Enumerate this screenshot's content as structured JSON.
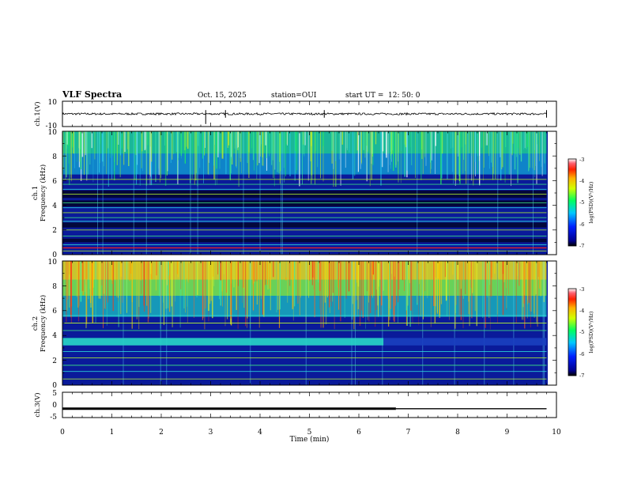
{
  "header": {
    "title": "VLF Spectra",
    "date": "Oct. 15, 2025",
    "station": "station=OUI",
    "start_label": "start  UT =",
    "start_time": "12: 50: 0"
  },
  "chart_data": [
    {
      "type": "line",
      "name": "ch1-waveform",
      "ylabel": "ch.1(V)",
      "ylim": [
        -10,
        10
      ],
      "yticks": [
        "10",
        "-10"
      ],
      "x_range_min": [
        0,
        10
      ],
      "baseline_value": 0,
      "spike_at_min": [
        2.9,
        3.3,
        5.3,
        9.8
      ]
    },
    {
      "type": "heatmap",
      "name": "ch1-spectrogram",
      "ylabel_line1": "ch.1",
      "ylabel_line2": "Frequency (kHz)",
      "ylim": [
        0,
        10
      ],
      "yticks": [
        "0",
        "2",
        "4",
        "6",
        "8",
        "10"
      ],
      "x_range_min": [
        0,
        10
      ],
      "colorbar_label": "log(PSD)(V²/Hz)",
      "colorbar_range": [
        -7,
        -3
      ],
      "colorbar_ticks": [
        "-3",
        "-4",
        "-5",
        "-6",
        "-7"
      ],
      "line_frequencies_khz": [
        0.3,
        0.8,
        1.5,
        2.0,
        2.7,
        3.0,
        3.4,
        3.8,
        4.2,
        4.9,
        5.3,
        5.7,
        6.1
      ],
      "bright_band_khz": [
        6.5,
        10
      ]
    },
    {
      "type": "heatmap",
      "name": "ch2-spectrogram",
      "ylabel_line1": "ch.2",
      "ylabel_line2": "Frequency (kHz)",
      "ylim": [
        0,
        10
      ],
      "yticks": [
        "0",
        "2",
        "4",
        "6",
        "8",
        "10"
      ],
      "x_range_min": [
        0,
        10
      ],
      "colorbar_label": "log(PSD)(V²/Hz)",
      "colorbar_range": [
        -7,
        -3
      ],
      "colorbar_ticks": [
        "-3",
        "-4",
        "-5",
        "-6",
        "-7"
      ],
      "band_khz": [
        3.2,
        3.8
      ],
      "band_end_min": 6.5,
      "line_frequencies_khz": [
        0.5,
        1.1,
        1.6,
        2.2,
        2.7,
        4.4,
        5.0,
        5.6
      ]
    },
    {
      "type": "line",
      "name": "ch3-signal",
      "ylabel": "ch.3(V)",
      "ylim": [
        -5,
        5
      ],
      "yticks": [
        "5",
        "0",
        "-5"
      ],
      "x_range_min": [
        0,
        10
      ],
      "level_value": -1.5,
      "thick_until_min": 6.75,
      "end_min": 9.8
    }
  ],
  "xaxis": {
    "label": "Time (min)",
    "ticks": [
      "0",
      "1",
      "2",
      "3",
      "4",
      "5",
      "6",
      "7",
      "8",
      "9",
      "10"
    ],
    "min": 0,
    "max": 10
  },
  "colors": {
    "background": "#ffffff",
    "axes": "#000000",
    "spectrogram_base": "#0a1a9a"
  }
}
